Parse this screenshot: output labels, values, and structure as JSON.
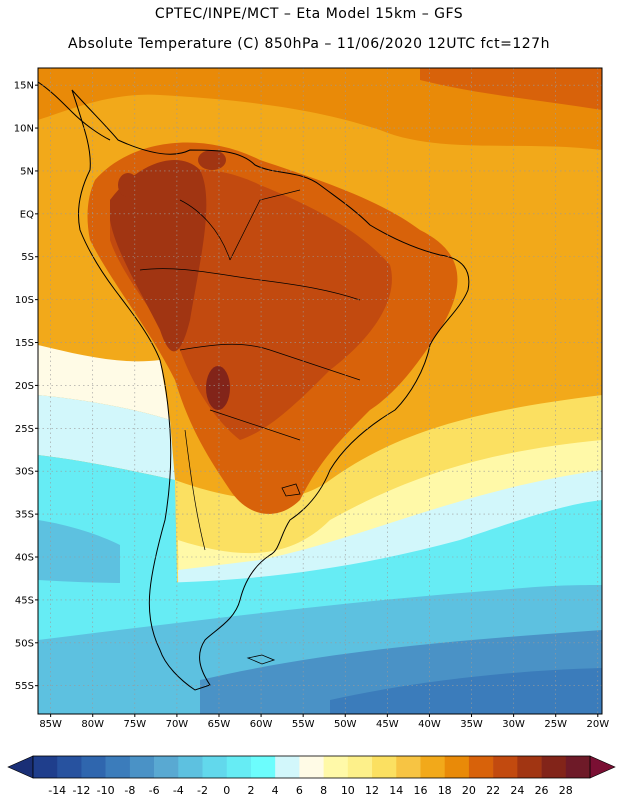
{
  "header": {
    "line1": "CPTEC/INPE/MCT –  Eta Model 15km – GFS",
    "line2": "Absolute Temperature (C) 850hPa – 11/06/2020 12UTC fct=127h"
  },
  "map": {
    "lat_labels": [
      "15N",
      "10N",
      "5N",
      "EQ",
      "5S",
      "10S",
      "15S",
      "20S",
      "25S",
      "30S",
      "35S",
      "40S",
      "45S",
      "50S",
      "55S"
    ],
    "lon_labels": [
      "85W",
      "80W",
      "75W",
      "70W",
      "65W",
      "60W",
      "55W",
      "50W",
      "45W",
      "40W",
      "35W",
      "30W",
      "25W",
      "20W"
    ]
  },
  "colorbar": {
    "labels": [
      "-14",
      "-12",
      "-10",
      "-8",
      "-6",
      "-4",
      "-2",
      "0",
      "2",
      "4",
      "6",
      "8",
      "10",
      "12",
      "14",
      "16",
      "18",
      "20",
      "22",
      "24",
      "26",
      "28"
    ],
    "colors": [
      "#1f3e8c",
      "#27529f",
      "#2f66ae",
      "#3b7cbb",
      "#4a92c6",
      "#59a9d2",
      "#5dc1e0",
      "#62d8ec",
      "#66ecf4",
      "#6cfdfd",
      "#d2f7fb",
      "#fffbe6",
      "#fff9a8",
      "#fdf08a",
      "#fbe061",
      "#f7c443",
      "#f2a91a",
      "#e98a08",
      "#d8620a",
      "#c24a0f",
      "#a13512",
      "#822419",
      "#6e1a28"
    ],
    "left_cap_color": "#1a2f76",
    "right_cap_color": "#7a0f33"
  }
}
